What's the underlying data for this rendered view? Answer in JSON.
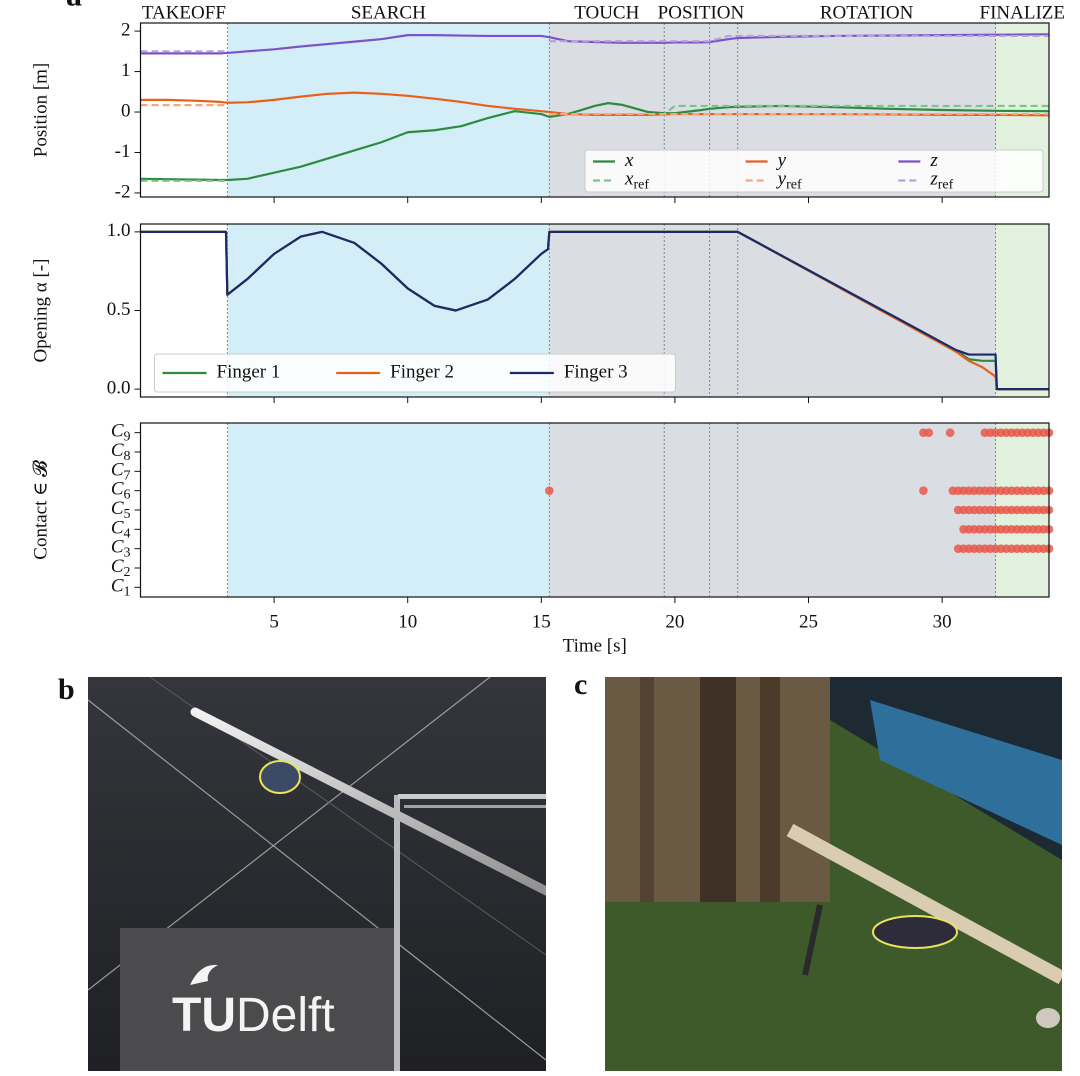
{
  "panels": {
    "a": "a",
    "b": "b",
    "c": "c",
    "sign": [
      "TU",
      "Delft"
    ]
  },
  "chart_data": [
    {
      "type": "line",
      "ylabel": "Position [m]",
      "xlim": [
        0,
        34
      ],
      "ylim": [
        -2.1,
        2.2
      ],
      "xticks": [
        5,
        10,
        15,
        20,
        25,
        30
      ],
      "yticks": [
        -2,
        -1,
        0,
        1,
        2
      ],
      "xtick_labels": false,
      "phases": [
        {
          "label": "TAKEOFF",
          "start": 0,
          "end": 3.25,
          "color": "#ffffff"
        },
        {
          "label": "SEARCH",
          "start": 3.25,
          "end": 15.3,
          "color": "#d4eef8"
        },
        {
          "label": "TOUCH",
          "start": 15.3,
          "end": 19.6,
          "color": "#dadde2"
        },
        {
          "label": "POSITION",
          "start": 19.6,
          "end": 22.35,
          "color": "#dadde2"
        },
        {
          "label": "ROTATION",
          "start": 22.35,
          "end": 32,
          "color": "#dadde2"
        },
        {
          "label": "FINALIZE",
          "start": 32,
          "end": 34,
          "color": "#e2f1dd"
        }
      ],
      "dividers": [
        3.25,
        15.3,
        19.6,
        21.3,
        22.35,
        32
      ],
      "legend": "lower right",
      "legend_columns": 3,
      "math_labels": true,
      "x": [
        0,
        1,
        2,
        3,
        3.25,
        4,
        5,
        6,
        7,
        8,
        9,
        10,
        11,
        12,
        13,
        14,
        15,
        15.3,
        16,
        17,
        17.5,
        18,
        19,
        19.6,
        20,
        21,
        21.3,
        22,
        22.35,
        24,
        26,
        28,
        30,
        32,
        34
      ],
      "series": [
        {
          "name": "x",
          "color": "#2e8b3e",
          "style": "solid",
          "values": [
            -1.65,
            -1.66,
            -1.67,
            -1.68,
            -1.68,
            -1.65,
            -1.5,
            -1.35,
            -1.15,
            -0.95,
            -0.75,
            -0.5,
            -0.45,
            -0.35,
            -0.15,
            0.02,
            -0.05,
            -0.12,
            -0.05,
            0.15,
            0.22,
            0.18,
            0.0,
            -0.03,
            -0.03,
            0.05,
            0.08,
            0.12,
            0.13,
            0.15,
            0.12,
            0.08,
            0.05,
            0.03,
            0.02
          ]
        },
        {
          "name": "xref",
          "color": "#7fc28e",
          "style": "dashed",
          "values": [
            -1.7,
            -1.7,
            -1.7,
            -1.7,
            -1.7,
            null,
            null,
            null,
            null,
            null,
            null,
            null,
            null,
            null,
            null,
            null,
            null,
            -0.05,
            -0.05,
            -0.05,
            -0.05,
            -0.05,
            -0.05,
            -0.05,
            0.15,
            0.15,
            0.15,
            0.15,
            0.15,
            0.15,
            0.15,
            0.15,
            0.15,
            0.15,
            0.15
          ]
        },
        {
          "name": "y",
          "color": "#e8601c",
          "style": "solid",
          "values": [
            0.3,
            0.3,
            0.28,
            0.25,
            0.23,
            0.24,
            0.3,
            0.38,
            0.45,
            0.48,
            0.45,
            0.4,
            0.33,
            0.25,
            0.15,
            0.08,
            0.02,
            0.0,
            -0.05,
            -0.07,
            -0.07,
            -0.07,
            -0.07,
            -0.06,
            -0.05,
            -0.05,
            -0.05,
            -0.05,
            -0.05,
            -0.05,
            -0.05,
            -0.06,
            -0.07,
            -0.07,
            -0.08
          ]
        },
        {
          "name": "yref",
          "color": "#f2a77e",
          "style": "dashed",
          "values": [
            0.17,
            0.17,
            0.17,
            0.17,
            0.17,
            null,
            null,
            null,
            null,
            null,
            null,
            null,
            null,
            null,
            null,
            null,
            null,
            -0.05,
            -0.05,
            -0.05,
            -0.05,
            -0.05,
            -0.05,
            -0.05,
            -0.05,
            -0.05,
            -0.05,
            -0.05,
            -0.05,
            -0.05,
            -0.05,
            -0.05,
            -0.05,
            -0.05,
            -0.05
          ]
        },
        {
          "name": "z",
          "color": "#7b52c7",
          "style": "solid",
          "values": [
            1.45,
            1.45,
            1.45,
            1.45,
            1.46,
            1.5,
            1.55,
            1.62,
            1.68,
            1.74,
            1.8,
            1.9,
            1.9,
            1.89,
            1.88,
            1.88,
            1.88,
            1.85,
            1.75,
            1.73,
            1.72,
            1.71,
            1.71,
            1.71,
            1.72,
            1.72,
            1.73,
            1.8,
            1.83,
            1.86,
            1.88,
            1.89,
            1.9,
            1.91,
            1.92
          ]
        },
        {
          "name": "zref",
          "color": "#b3a1e0",
          "style": "dashed",
          "values": [
            1.5,
            1.5,
            1.5,
            1.5,
            1.5,
            null,
            null,
            null,
            null,
            null,
            null,
            null,
            null,
            null,
            null,
            null,
            null,
            1.75,
            1.75,
            1.75,
            1.75,
            1.75,
            1.75,
            1.75,
            1.75,
            1.75,
            1.75,
            1.88,
            1.88,
            1.88,
            1.88,
            1.88,
            1.88,
            1.88,
            1.88
          ]
        }
      ]
    },
    {
      "type": "line",
      "ylabel": "Opening α [-]",
      "xlim": [
        0,
        34
      ],
      "ylim": [
        -0.05,
        1.05
      ],
      "xticks": [
        5,
        10,
        15,
        20,
        25,
        30
      ],
      "yticks": [
        {
          "value": 0,
          "label": "0.0"
        },
        0.5,
        {
          "value": 1,
          "label": "1.0"
        }
      ],
      "xtick_labels": false,
      "legend": "lower left",
      "legend_columns": 3,
      "x": [
        0,
        3.2,
        3.25,
        4,
        5,
        6,
        6.8,
        8,
        9,
        10,
        11,
        11.8,
        13,
        14,
        15,
        15.25,
        15.3,
        22.35,
        30.5,
        31,
        31.5,
        32,
        32.05,
        34
      ],
      "series": [
        {
          "name": "Finger 1",
          "color": "#2e8b3e",
          "style": "solid",
          "values": [
            1.0,
            1.0,
            0.6,
            0.7,
            0.86,
            0.97,
            1.0,
            0.93,
            0.8,
            0.64,
            0.53,
            0.5,
            0.57,
            0.7,
            0.86,
            0.89,
            1.0,
            1.0,
            0.25,
            0.19,
            0.18,
            0.18,
            0,
            0
          ]
        },
        {
          "name": "Finger 2",
          "color": "#e8601c",
          "style": "solid",
          "values": [
            1.0,
            1.0,
            0.6,
            0.7,
            0.86,
            0.97,
            1.0,
            0.93,
            0.8,
            0.64,
            0.53,
            0.5,
            0.57,
            0.7,
            0.86,
            0.89,
            1.0,
            1.0,
            0.24,
            0.18,
            0.14,
            0.08,
            0,
            0
          ]
        },
        {
          "name": "Finger 3",
          "color": "#1a2a6c",
          "style": "solid",
          "values": [
            1.0,
            1.0,
            0.6,
            0.7,
            0.86,
            0.97,
            1.0,
            0.93,
            0.8,
            0.64,
            0.53,
            0.5,
            0.57,
            0.7,
            0.86,
            0.89,
            1.0,
            1.0,
            0.25,
            0.22,
            0.22,
            0.22,
            0,
            0
          ]
        }
      ]
    },
    {
      "type": "scatter",
      "ylabel": "Contact ∈ 𝓑",
      "xlabel": "Time [s]",
      "xlim": [
        0,
        34
      ],
      "ylim": [
        0.5,
        9.5
      ],
      "xticks": [
        5,
        10,
        15,
        20,
        25,
        30
      ],
      "yticks": [
        {
          "value": 1,
          "label": "C1"
        },
        {
          "value": 2,
          "label": "C2"
        },
        {
          "value": 3,
          "label": "C3"
        },
        {
          "value": 4,
          "label": "C4"
        },
        {
          "value": 5,
          "label": "C5"
        },
        {
          "value": 6,
          "label": "C6"
        },
        {
          "value": 7,
          "label": "C7"
        },
        {
          "value": 8,
          "label": "C8"
        },
        {
          "value": 9,
          "label": "C9"
        }
      ],
      "xtick_labels": true,
      "math_labels": true,
      "color": "#e8584a",
      "x": [
        29.3,
        29.5,
        30.3,
        31.6,
        31.8,
        32.0,
        32.2,
        32.4,
        32.6,
        32.8,
        33.0,
        33.2,
        33.4,
        33.6,
        33.8,
        34.0,
        15.3,
        29.3,
        30.4,
        30.6,
        30.8,
        31.0,
        31.2,
        31.4,
        31.6,
        31.8,
        32.0,
        32.2,
        32.4,
        32.6,
        32.8,
        33.0,
        33.2,
        33.4,
        33.6,
        33.8,
        34.0,
        30.6,
        30.8,
        31.0,
        31.2,
        31.4,
        31.6,
        31.8,
        32.0,
        32.2,
        32.4,
        32.6,
        32.8,
        33.0,
        33.2,
        33.4,
        33.6,
        33.8,
        34.0,
        30.8,
        31.0,
        31.2,
        31.4,
        31.6,
        31.8,
        32.0,
        32.2,
        32.4,
        32.6,
        32.8,
        33.0,
        33.2,
        33.4,
        33.6,
        33.8,
        34.0,
        30.6,
        30.8,
        31.0,
        31.2,
        31.4,
        31.6,
        31.8,
        32.0,
        32.2,
        32.4,
        32.6,
        32.8,
        33.0,
        33.2,
        33.4,
        33.6,
        33.8,
        34.0
      ],
      "y": [
        9,
        9,
        9,
        9,
        9,
        9,
        9,
        9,
        9,
        9,
        9,
        9,
        9,
        9,
        9,
        9,
        6,
        6,
        6,
        6,
        6,
        6,
        6,
        6,
        6,
        6,
        6,
        6,
        6,
        6,
        6,
        6,
        6,
        6,
        6,
        6,
        6,
        5,
        5,
        5,
        5,
        5,
        5,
        5,
        5,
        5,
        5,
        5,
        5,
        5,
        5,
        5,
        5,
        5,
        5,
        4,
        4,
        4,
        4,
        4,
        4,
        4,
        4,
        4,
        4,
        4,
        4,
        4,
        4,
        4,
        4,
        4,
        3,
        3,
        3,
        3,
        3,
        3,
        3,
        3,
        3,
        3,
        3,
        3,
        3,
        3,
        3,
        3,
        3,
        3
      ]
    }
  ]
}
